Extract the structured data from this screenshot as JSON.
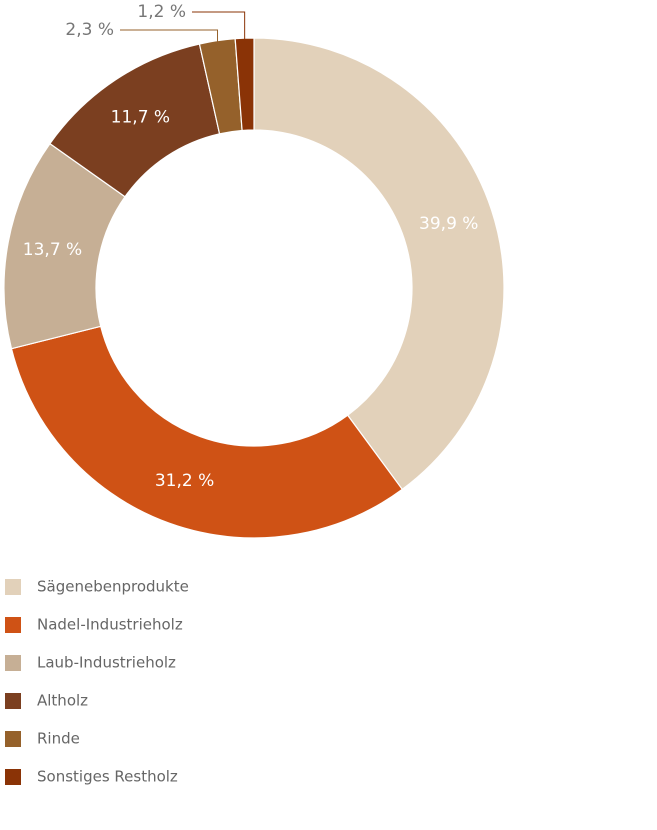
{
  "chart_data": {
    "type": "donut",
    "categories": [
      "Sägenebenprodukte",
      "Nadel-Industrieholz",
      "Laub-Industrieholz",
      "Altholz",
      "Rinde",
      "Sonstiges Restholz"
    ],
    "values": [
      39.9,
      31.2,
      13.7,
      11.7,
      2.3,
      1.2
    ],
    "value_labels": [
      "39,9 %",
      "31,2 %",
      "13,7 %",
      "11,7 %",
      "2,3 %",
      "1,2 %"
    ],
    "colors": [
      "#e2d1ba",
      "#cf5215",
      "#c6af95",
      "#7b3f20",
      "#95612b",
      "#8a3306"
    ]
  }
}
